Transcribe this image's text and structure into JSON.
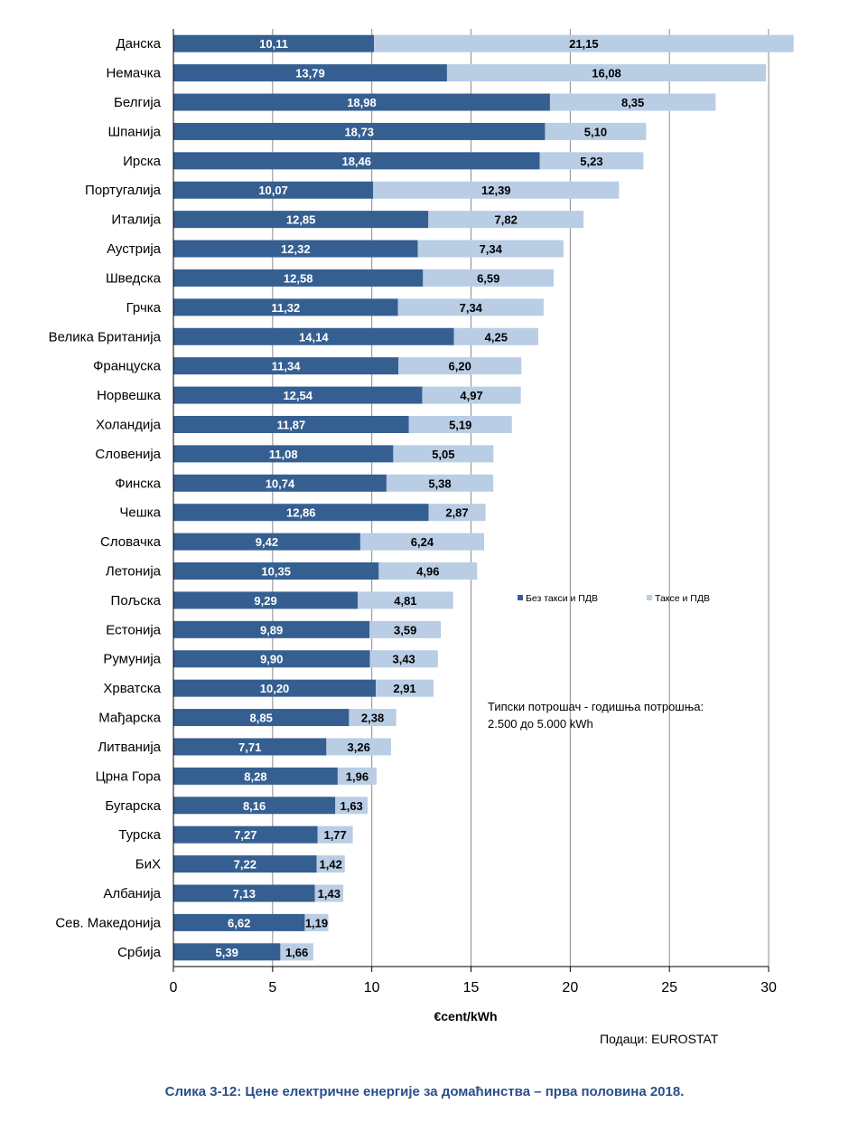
{
  "chart_data": {
    "type": "bar",
    "orientation": "horizontal",
    "stacked": true,
    "categories": [
      "Данска",
      "Немачка",
      "Белгија",
      "Шпанија",
      "Ирска",
      "Португалија",
      "Италија",
      "Аустрија",
      "Шведска",
      "Грчка",
      "Велика Британија",
      "Француска",
      "Норвешка",
      "Холандија",
      "Словенија",
      "Финска",
      "Чешка",
      "Словачка",
      "Летонија",
      "Пољска",
      "Естонија",
      "Румунија",
      "Хрватска",
      "Мађарска",
      "Литванија",
      "Црна Гора",
      "Бугарска",
      "Турска",
      "БиХ",
      "Албанија",
      "Сев. Македонија",
      "Србија"
    ],
    "series": [
      {
        "name": "Без такси и ПДВ",
        "color": "#365f91",
        "values": [
          10.11,
          13.79,
          18.98,
          18.73,
          18.46,
          10.07,
          12.85,
          12.32,
          12.58,
          11.32,
          14.14,
          11.34,
          12.54,
          11.87,
          11.08,
          10.74,
          12.86,
          9.42,
          10.35,
          9.29,
          9.89,
          9.9,
          10.2,
          8.85,
          7.71,
          8.28,
          8.16,
          7.27,
          7.22,
          7.13,
          6.62,
          5.39
        ],
        "labels": [
          "10,11",
          "13,79",
          "18,98",
          "18,73",
          "18,46",
          "10,07",
          "12,85",
          "12,32",
          "12,58",
          "11,32",
          "14,14",
          "11,34",
          "12,54",
          "11,87",
          "11,08",
          "10,74",
          "12,86",
          "9,42",
          "10,35",
          "9,29",
          "9,89",
          "9,90",
          "10,20",
          "8,85",
          "7,71",
          "8,28",
          "8,16",
          "7,27",
          "7,22",
          "7,13",
          "6,62",
          "5,39"
        ]
      },
      {
        "name": "Таксе и ПДВ",
        "color": "#b9cde5",
        "values": [
          21.15,
          16.08,
          8.35,
          5.1,
          5.23,
          12.39,
          7.82,
          7.34,
          6.59,
          7.34,
          4.25,
          6.2,
          4.97,
          5.19,
          5.05,
          5.38,
          2.87,
          6.24,
          4.96,
          4.81,
          3.59,
          3.43,
          2.91,
          2.38,
          3.26,
          1.96,
          1.63,
          1.77,
          1.42,
          1.43,
          1.19,
          1.66
        ],
        "labels": [
          "21,15",
          "16,08",
          "8,35",
          "5,10",
          "5,23",
          "12,39",
          "7,82",
          "7,34",
          "6,59",
          "7,34",
          "4,25",
          "6,20",
          "4,97",
          "5,19",
          "5,05",
          "5,38",
          "2,87",
          "6,24",
          "4,96",
          "4,81",
          "3,59",
          "3,43",
          "2,91",
          "2,38",
          "3,26",
          "1,96",
          "1,63",
          "1,77",
          "1,42",
          "1,43",
          "1,19",
          "1,66"
        ]
      }
    ],
    "xlim": [
      0,
      30
    ],
    "xticks": [
      0,
      5,
      10,
      15,
      20,
      25,
      30
    ],
    "xlabel": "€cent/kWh",
    "grid": true,
    "legend_position": "right-middle"
  },
  "annotation": {
    "line1": "Типски потрошач - годишња потрошња:",
    "line2": "2.500 до 5.000  kWh"
  },
  "source": "Подаци:  EUROSTAT",
  "caption": "Слика 3-12: Цене електричне енергије за домаћинства – прва половина 2018."
}
